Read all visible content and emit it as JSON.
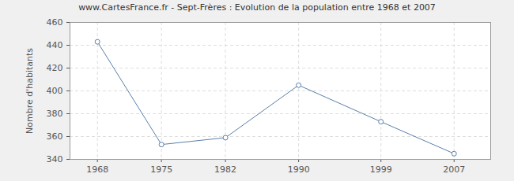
{
  "chart_data": {
    "type": "line",
    "title": "www.CartesFrance.fr - Sept-Frères : Evolution de la population entre 1968 et 2007",
    "y_label": "Nombre d'habitants",
    "x": [
      1968,
      1975,
      1982,
      1990,
      1999,
      2007
    ],
    "values": [
      443,
      353,
      359,
      405,
      373,
      345
    ],
    "color": "#5a7fa8",
    "marker": "circle",
    "line_style": "solid",
    "xlim": [
      1965,
      2011
    ],
    "xticks": [
      1968,
      1975,
      1982,
      1990,
      1999,
      2007
    ],
    "ylim": [
      340,
      460
    ],
    "yticks": [
      340,
      360,
      380,
      400,
      420,
      440,
      460
    ],
    "grid": true
  }
}
